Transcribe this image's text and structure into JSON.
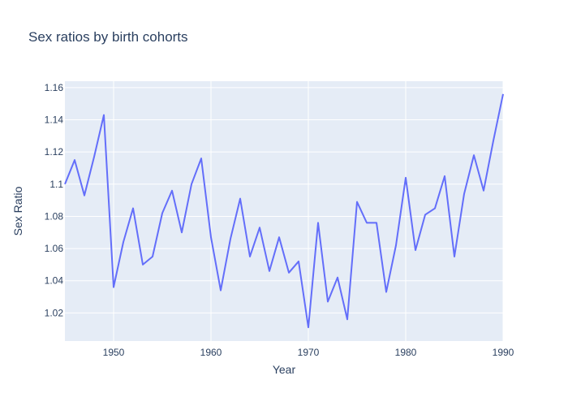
{
  "chart_data": {
    "type": "line",
    "title": "Sex ratios by birth cohorts",
    "xlabel": "Year",
    "ylabel": "Sex Ratio",
    "xlim": [
      1945,
      1990
    ],
    "ylim": [
      1.0025,
      1.164
    ],
    "x_ticks": [
      1950,
      1960,
      1970,
      1980,
      1990
    ],
    "y_ticks": [
      1.02,
      1.04,
      1.06,
      1.08,
      1.1,
      1.12,
      1.14,
      1.16
    ],
    "y_tick_labels": [
      "1.02",
      "1.04",
      "1.06",
      "1.08",
      "1.1",
      "1.12",
      "1.14",
      "1.16"
    ],
    "grid": true,
    "colors": {
      "plot_bg": "#E5ECF6",
      "grid": "#ffffff",
      "line": "#636efa",
      "text": "#2a3f5f"
    },
    "series": [
      {
        "x": [
          1945,
          1946,
          1947,
          1948,
          1949,
          1950,
          1951,
          1952,
          1953,
          1954,
          1955,
          1956,
          1957,
          1958,
          1959,
          1960,
          1961,
          1962,
          1963,
          1964,
          1965,
          1966,
          1967,
          1968,
          1969,
          1970,
          1971,
          1972,
          1973,
          1974,
          1975,
          1976,
          1977,
          1978,
          1979,
          1980,
          1981,
          1982,
          1983,
          1984,
          1985,
          1986,
          1987,
          1988,
          1989,
          1990
        ],
        "y": [
          1.1,
          1.115,
          1.093,
          1.117,
          1.143,
          1.036,
          1.064,
          1.085,
          1.05,
          1.055,
          1.082,
          1.096,
          1.07,
          1.1,
          1.116,
          1.067,
          1.034,
          1.066,
          1.091,
          1.055,
          1.073,
          1.046,
          1.067,
          1.045,
          1.052,
          1.011,
          1.076,
          1.027,
          1.042,
          1.016,
          1.089,
          1.076,
          1.076,
          1.033,
          1.062,
          1.104,
          1.059,
          1.081,
          1.085,
          1.105,
          1.055,
          1.094,
          1.118,
          1.096,
          1.127,
          1.156
        ]
      }
    ]
  }
}
